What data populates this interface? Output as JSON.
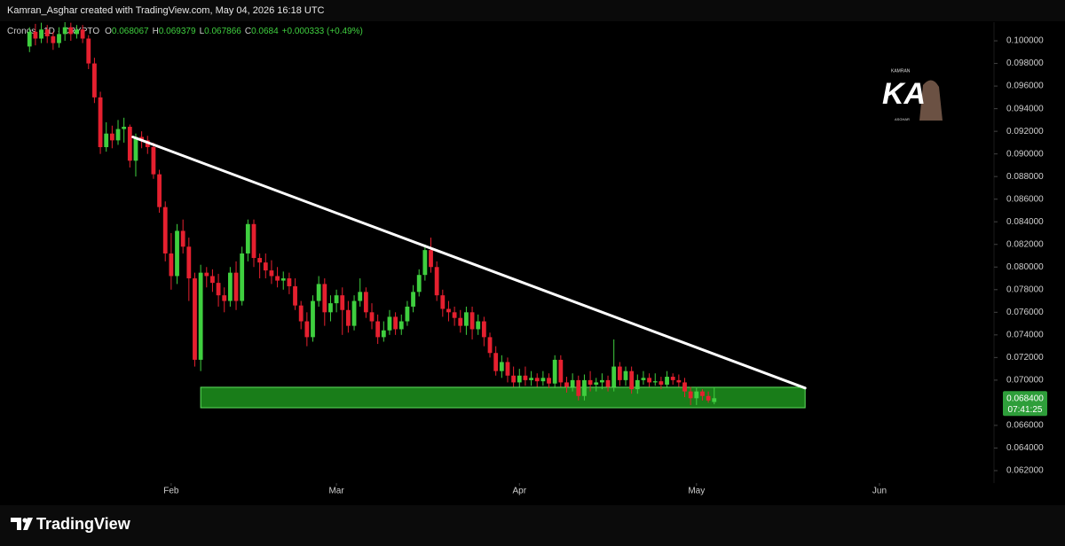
{
  "header": "Kamran_Asghar created with TradingView.com, May 04, 2026 16:18 UTC",
  "footer": "TradingView",
  "watermark": {
    "top": "KAMRAN",
    "main": "KA",
    "bottom": "ASGHAR"
  },
  "chart_data": {
    "type": "candlestick",
    "title": "Cronos · 1D · CRYPTO",
    "legend_values": [
      {
        "label": "O",
        "value": 0.068067
      },
      {
        "label": "H",
        "value": 0.069379
      },
      {
        "label": "L",
        "value": 0.067866
      },
      {
        "label": "C",
        "value": 0.0684
      }
    ],
    "change": "+0.000333 (+0.49%)",
    "up_color": "#3fcf3f",
    "down_color": "#e5202f",
    "x": [
      8,
      9,
      10,
      11,
      12,
      13,
      14,
      15,
      16,
      17,
      18,
      19,
      20,
      21,
      22,
      23,
      24,
      25,
      26,
      27,
      28,
      29,
      30,
      31,
      32,
      33,
      34,
      35,
      36,
      37,
      38,
      39,
      40,
      41,
      42,
      43,
      44,
      45,
      46,
      47,
      48,
      49,
      50,
      51,
      52,
      53,
      54,
      55,
      56,
      57,
      58,
      59,
      60,
      61,
      62,
      63,
      64,
      65,
      66,
      67,
      68,
      69,
      70,
      71,
      72,
      73,
      74,
      75,
      76,
      77,
      78,
      79,
      80,
      81,
      82,
      83,
      84,
      85,
      86,
      87,
      88,
      89,
      90,
      91,
      92,
      93,
      94,
      95,
      96,
      97,
      98,
      99,
      100,
      101,
      102,
      103,
      104,
      105,
      106,
      107,
      108,
      109,
      110,
      111,
      112,
      113,
      114,
      115,
      116,
      117,
      118,
      119,
      120,
      121,
      122,
      123,
      124
    ],
    "open": [
      0.0995,
      0.1008,
      0.1002,
      0.101,
      0.1004,
      0.0998,
      0.1006,
      0.1012,
      0.1006,
      0.101,
      0.1002,
      0.098,
      0.095,
      0.0906,
      0.0918,
      0.0912,
      0.0922,
      0.0924,
      0.0894,
      0.0915,
      0.0912,
      0.0906,
      0.0882,
      0.0853,
      0.0812,
      0.0792,
      0.0832,
      0.0818,
      0.079,
      0.0718,
      0.0795,
      0.0792,
      0.0786,
      0.0775,
      0.077,
      0.0795,
      0.077,
      0.0812,
      0.0838,
      0.0808,
      0.0804,
      0.0797,
      0.0792,
      0.0788,
      0.079,
      0.0783,
      0.0766,
      0.0752,
      0.0738,
      0.077,
      0.0785,
      0.076,
      0.0768,
      0.0775,
      0.0762,
      0.0748,
      0.077,
      0.0778,
      0.076,
      0.0752,
      0.0738,
      0.0744,
      0.0756,
      0.0745,
      0.0752,
      0.0765,
      0.0778,
      0.0793,
      0.0815,
      0.08,
      0.0775,
      0.0763,
      0.076,
      0.0755,
      0.0748,
      0.076,
      0.0745,
      0.0752,
      0.0738,
      0.0724,
      0.0708,
      0.0716,
      0.0704,
      0.0698,
      0.0704,
      0.07,
      0.0702,
      0.0699,
      0.0702,
      0.0697,
      0.0718,
      0.0698,
      0.0694,
      0.07,
      0.0686,
      0.07,
      0.0696,
      0.0698,
      0.07,
      0.0694,
      0.0712,
      0.07,
      0.0708,
      0.0692,
      0.07,
      0.0702,
      0.0698,
      0.0699,
      0.0696,
      0.0703,
      0.07,
      0.0698,
      0.069,
      0.0684,
      0.069,
      0.0686,
      0.068067
    ],
    "close": [
      0.1008,
      0.1002,
      0.101,
      0.1004,
      0.0998,
      0.1006,
      0.1012,
      0.1006,
      0.101,
      0.1002,
      0.098,
      0.095,
      0.0906,
      0.0918,
      0.0912,
      0.0922,
      0.0924,
      0.0894,
      0.0915,
      0.0912,
      0.0906,
      0.0882,
      0.0853,
      0.0812,
      0.0792,
      0.0832,
      0.0818,
      0.079,
      0.0718,
      0.0795,
      0.0792,
      0.0786,
      0.0775,
      0.077,
      0.0795,
      0.077,
      0.0812,
      0.0838,
      0.0808,
      0.0804,
      0.0797,
      0.0792,
      0.0788,
      0.079,
      0.0783,
      0.0766,
      0.0752,
      0.0738,
      0.077,
      0.0785,
      0.076,
      0.0768,
      0.0775,
      0.0762,
      0.0748,
      0.077,
      0.0778,
      0.076,
      0.0752,
      0.0738,
      0.0744,
      0.0756,
      0.0745,
      0.0752,
      0.0765,
      0.0778,
      0.0793,
      0.0815,
      0.08,
      0.0775,
      0.0763,
      0.076,
      0.0755,
      0.0748,
      0.076,
      0.0745,
      0.0752,
      0.0738,
      0.0724,
      0.0708,
      0.0716,
      0.0704,
      0.0698,
      0.0704,
      0.07,
      0.0702,
      0.0699,
      0.0702,
      0.0697,
      0.0718,
      0.0698,
      0.0694,
      0.07,
      0.0686,
      0.07,
      0.0696,
      0.0698,
      0.07,
      0.0694,
      0.0712,
      0.07,
      0.0708,
      0.0692,
      0.07,
      0.0702,
      0.0698,
      0.0699,
      0.0696,
      0.0703,
      0.07,
      0.0698,
      0.069,
      0.0684,
      0.069,
      0.0686,
      0.0682,
      0.0684
    ],
    "high": [
      0.1012,
      0.1015,
      0.1016,
      0.1014,
      0.1008,
      0.1012,
      0.1018,
      0.1016,
      0.1014,
      0.1014,
      0.1005,
      0.0985,
      0.0955,
      0.0928,
      0.0925,
      0.093,
      0.0932,
      0.0926,
      0.0918,
      0.092,
      0.0916,
      0.091,
      0.0886,
      0.0858,
      0.083,
      0.0838,
      0.0842,
      0.0826,
      0.0795,
      0.0802,
      0.08,
      0.0798,
      0.0794,
      0.0782,
      0.08,
      0.0805,
      0.0818,
      0.0842,
      0.0842,
      0.0812,
      0.0812,
      0.0806,
      0.08,
      0.0796,
      0.0795,
      0.079,
      0.077,
      0.076,
      0.0775,
      0.0792,
      0.079,
      0.0775,
      0.078,
      0.0782,
      0.077,
      0.0775,
      0.079,
      0.0782,
      0.0768,
      0.0758,
      0.0752,
      0.0762,
      0.076,
      0.0758,
      0.077,
      0.0784,
      0.0798,
      0.082,
      0.0826,
      0.0805,
      0.078,
      0.077,
      0.0765,
      0.0762,
      0.0765,
      0.0765,
      0.0758,
      0.0756,
      0.0742,
      0.073,
      0.0722,
      0.072,
      0.0712,
      0.071,
      0.0712,
      0.0708,
      0.0706,
      0.0708,
      0.0706,
      0.0722,
      0.0722,
      0.0703,
      0.0706,
      0.0704,
      0.0705,
      0.0708,
      0.0702,
      0.0706,
      0.0704,
      0.0736,
      0.0716,
      0.0712,
      0.0712,
      0.0705,
      0.0708,
      0.0706,
      0.0706,
      0.0703,
      0.0708,
      0.0706,
      0.0705,
      0.0702,
      0.0694,
      0.0694,
      0.0692,
      0.069,
      0.069379
    ],
    "low": [
      0.099,
      0.0996,
      0.0998,
      0.0998,
      0.0992,
      0.0994,
      0.1,
      0.1,
      0.1002,
      0.0998,
      0.0975,
      0.0945,
      0.09,
      0.0902,
      0.0905,
      0.0908,
      0.091,
      0.0888,
      0.088,
      0.0905,
      0.09,
      0.0878,
      0.0848,
      0.0805,
      0.078,
      0.0785,
      0.0812,
      0.077,
      0.0712,
      0.0708,
      0.0782,
      0.0778,
      0.0765,
      0.076,
      0.0765,
      0.0762,
      0.0766,
      0.0805,
      0.08,
      0.079,
      0.079,
      0.0785,
      0.0782,
      0.078,
      0.0776,
      0.0762,
      0.0745,
      0.073,
      0.0734,
      0.0765,
      0.0748,
      0.0752,
      0.076,
      0.074,
      0.0742,
      0.0744,
      0.0765,
      0.0755,
      0.0745,
      0.0732,
      0.0734,
      0.074,
      0.074,
      0.074,
      0.0748,
      0.076,
      0.0774,
      0.0788,
      0.0795,
      0.077,
      0.0756,
      0.0752,
      0.0748,
      0.0742,
      0.074,
      0.0736,
      0.074,
      0.073,
      0.072,
      0.0704,
      0.0702,
      0.0698,
      0.0694,
      0.0694,
      0.0695,
      0.0695,
      0.0694,
      0.0695,
      0.0693,
      0.0693,
      0.0694,
      0.0689,
      0.069,
      0.0682,
      0.0682,
      0.069,
      0.069,
      0.0692,
      0.069,
      0.069,
      0.0695,
      0.0695,
      0.0688,
      0.0688,
      0.0696,
      0.0694,
      0.0695,
      0.0692,
      0.0694,
      0.0696,
      0.0694,
      0.0685,
      0.0678,
      0.0678,
      0.0682,
      0.068,
      0.067866
    ],
    "xlim": [
      3,
      171.4
    ],
    "xticks": [
      {
        "value": 32,
        "label": "Feb"
      },
      {
        "value": 60,
        "label": "Mar"
      },
      {
        "value": 91,
        "label": "Apr"
      },
      {
        "value": 121,
        "label": "May"
      },
      {
        "value": 152,
        "label": "Jun"
      }
    ],
    "ylim": [
      0.0609,
      0.10165
    ],
    "yticks": [
      {
        "value": 0.062,
        "label": "0.062000"
      },
      {
        "value": 0.064,
        "label": "0.064000"
      },
      {
        "value": 0.066,
        "label": "0.066000"
      },
      {
        "value": 0.07,
        "label": "0.070000"
      },
      {
        "value": 0.072,
        "label": "0.072000"
      },
      {
        "value": 0.074,
        "label": "0.074000"
      },
      {
        "value": 0.076,
        "label": "0.076000"
      },
      {
        "value": 0.078,
        "label": "0.078000"
      },
      {
        "value": 0.08,
        "label": "0.080000"
      },
      {
        "value": 0.082,
        "label": "0.082000"
      },
      {
        "value": 0.084,
        "label": "0.084000"
      },
      {
        "value": 0.086,
        "label": "0.086000"
      },
      {
        "value": 0.088,
        "label": "0.088000"
      },
      {
        "value": 0.09,
        "label": "0.090000"
      },
      {
        "value": 0.092,
        "label": "0.092000"
      },
      {
        "value": 0.094,
        "label": "0.094000"
      },
      {
        "value": 0.096,
        "label": "0.096000"
      },
      {
        "value": 0.098,
        "label": "0.098000"
      },
      {
        "value": 0.1,
        "label": "0.100000"
      }
    ],
    "grid": false,
    "last_price": {
      "value": 0.0684,
      "label": "0.068400"
    },
    "countdown": "07:41:25",
    "trendline": {
      "x": [
        25.5,
        139.4
      ],
      "y": [
        0.0915,
        0.0693
      ],
      "color": "#ffffff"
    },
    "zone": {
      "x": [
        37,
        139.4
      ],
      "y": [
        0.06937,
        0.06756
      ],
      "color": "#22a722"
    }
  }
}
